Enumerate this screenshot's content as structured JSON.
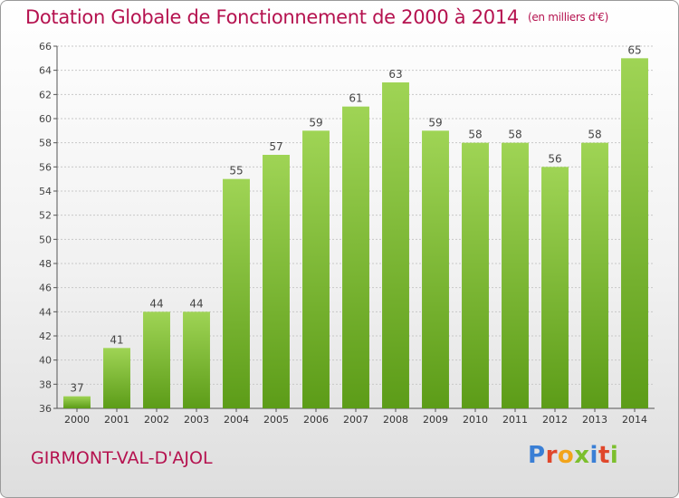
{
  "header": {
    "title": "Dotation Globale de Fonctionnement de 2000 à 2014",
    "unit": "(en milliers d'€)"
  },
  "footer": {
    "commune": "GIRMONT-VAL-D'AJOL",
    "brand": "Proxiti"
  },
  "colors": {
    "title": "#b5124f",
    "bar_top": "#9fd455",
    "bar_bottom": "#5c9c18",
    "brand_letters": [
      "#3a7fd5",
      "#e0472b",
      "#f2a41a",
      "#7cbf2d",
      "#3a7fd5",
      "#e0472b",
      "#7cbf2d"
    ]
  },
  "chart_data": {
    "type": "bar",
    "categories": [
      "2000",
      "2001",
      "2002",
      "2003",
      "2004",
      "2005",
      "2006",
      "2007",
      "2008",
      "2009",
      "2010",
      "2011",
      "2012",
      "2013",
      "2014"
    ],
    "values": [
      37,
      41,
      44,
      44,
      55,
      57,
      59,
      61,
      63,
      59,
      58,
      58,
      56,
      58,
      65
    ],
    "ylim": [
      36,
      66
    ],
    "yticks": [
      36,
      38,
      40,
      42,
      44,
      46,
      48,
      50,
      52,
      54,
      56,
      58,
      60,
      62,
      64,
      66
    ],
    "title": "Dotation Globale de Fonctionnement de 2000 à 2014",
    "xlabel": "",
    "ylabel": "",
    "grid": true
  }
}
